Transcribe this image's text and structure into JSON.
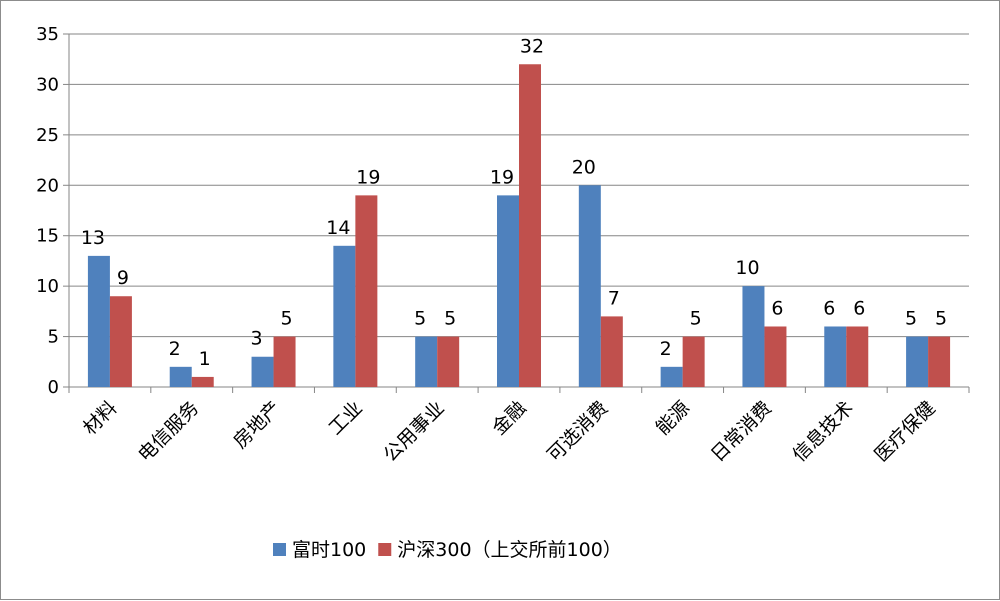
{
  "chart_data": {
    "type": "bar",
    "categories": [
      "材料",
      "电信服务",
      "房地产",
      "工业",
      "公用事业",
      "金融",
      "可选消费",
      "能源",
      "日常消费",
      "信息技术",
      "医疗保健"
    ],
    "series": [
      {
        "name": "富时100",
        "values": [
          13,
          2,
          3,
          14,
          5,
          19,
          20,
          2,
          10,
          6,
          5
        ],
        "color": "#4f81bd"
      },
      {
        "name": "沪深300（上交所前100）",
        "values": [
          9,
          1,
          5,
          19,
          5,
          32,
          7,
          5,
          6,
          6,
          5
        ],
        "color": "#c0504d"
      }
    ],
    "ylim": [
      0,
      35
    ],
    "yticks": [
      0,
      5,
      10,
      15,
      20,
      25,
      30,
      35
    ],
    "grid": true,
    "legend_position": "bottom"
  }
}
